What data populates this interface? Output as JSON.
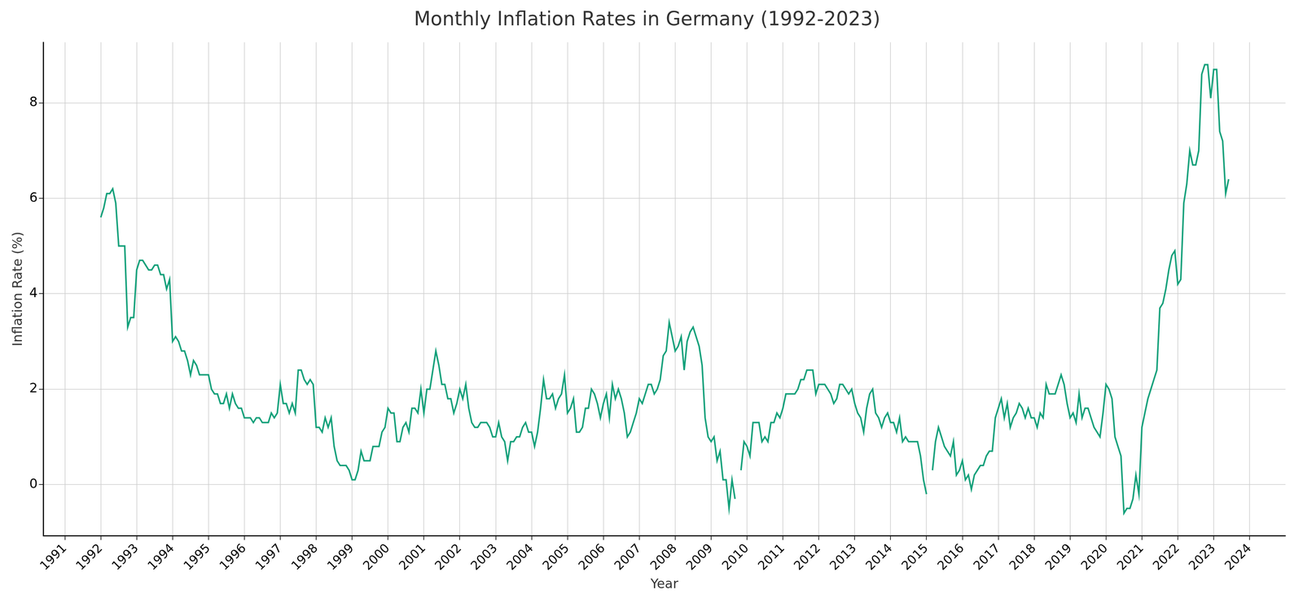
{
  "chart_data": {
    "type": "line",
    "title": "Monthly Inflation Rates in Germany (1992-2023)",
    "x_label": "Year",
    "y_label": "Inflation Rate (%)",
    "color": "#13a07a",
    "line_style": "solid",
    "marker": "none",
    "grid": true,
    "xlim": [
      1990.4,
      2025.0
    ],
    "xticks": [
      1991,
      1992,
      1993,
      1994,
      1995,
      1996,
      1997,
      1998,
      1999,
      2000,
      2001,
      2002,
      2003,
      2004,
      2005,
      2006,
      2007,
      2008,
      2009,
      2010,
      2011,
      2012,
      2013,
      2014,
      2015,
      2016,
      2017,
      2018,
      2019,
      2020,
      2021,
      2022,
      2023,
      2024
    ],
    "ylim": [
      -1.07,
      9.27
    ],
    "yticks": [
      0,
      2,
      4,
      6,
      8
    ],
    "x": [
      1992,
      1992.083,
      1992.167,
      1992.25,
      1992.333,
      1992.417,
      1992.5,
      1992.583,
      1992.667,
      1992.75,
      1992.833,
      1992.917,
      1993,
      1993.083,
      1993.167,
      1993.25,
      1993.333,
      1993.417,
      1993.5,
      1993.583,
      1993.667,
      1993.75,
      1993.833,
      1993.917,
      1994,
      1994.083,
      1994.167,
      1994.25,
      1994.333,
      1994.417,
      1994.5,
      1994.583,
      1994.667,
      1994.75,
      1994.833,
      1994.917,
      1995,
      1995.083,
      1995.167,
      1995.25,
      1995.333,
      1995.417,
      1995.5,
      1995.583,
      1995.667,
      1995.75,
      1995.833,
      1995.917,
      1996,
      1996.083,
      1996.167,
      1996.25,
      1996.333,
      1996.417,
      1996.5,
      1996.583,
      1996.667,
      1996.75,
      1996.833,
      1996.917,
      1997,
      1997.083,
      1997.167,
      1997.25,
      1997.333,
      1997.417,
      1997.5,
      1997.583,
      1997.667,
      1997.75,
      1997.833,
      1997.917,
      1998,
      1998.083,
      1998.167,
      1998.25,
      1998.333,
      1998.417,
      1998.5,
      1998.583,
      1998.667,
      1998.75,
      1998.833,
      1998.917,
      1999,
      1999.083,
      1999.167,
      1999.25,
      1999.333,
      1999.417,
      1999.5,
      1999.583,
      1999.667,
      1999.75,
      1999.833,
      1999.917,
      2000,
      2000.083,
      2000.167,
      2000.25,
      2000.333,
      2000.417,
      2000.5,
      2000.583,
      2000.667,
      2000.75,
      2000.833,
      2000.917,
      2001,
      2001.083,
      2001.167,
      2001.25,
      2001.333,
      2001.417,
      2001.5,
      2001.583,
      2001.667,
      2001.75,
      2001.833,
      2001.917,
      2002,
      2002.083,
      2002.167,
      2002.25,
      2002.333,
      2002.417,
      2002.5,
      2002.583,
      2002.667,
      2002.75,
      2002.833,
      2002.917,
      2003,
      2003.083,
      2003.167,
      2003.25,
      2003.333,
      2003.417,
      2003.5,
      2003.583,
      2003.667,
      2003.75,
      2003.833,
      2003.917,
      2004,
      2004.083,
      2004.167,
      2004.25,
      2004.333,
      2004.417,
      2004.5,
      2004.583,
      2004.667,
      2004.75,
      2004.833,
      2004.917,
      2005,
      2005.083,
      2005.167,
      2005.25,
      2005.333,
      2005.417,
      2005.5,
      2005.583,
      2005.667,
      2005.75,
      2005.833,
      2005.917,
      2006,
      2006.083,
      2006.167,
      2006.25,
      2006.333,
      2006.417,
      2006.5,
      2006.583,
      2006.667,
      2006.75,
      2006.833,
      2006.917,
      2007,
      2007.083,
      2007.167,
      2007.25,
      2007.333,
      2007.417,
      2007.5,
      2007.583,
      2007.667,
      2007.75,
      2007.833,
      2007.917,
      2008,
      2008.083,
      2008.167,
      2008.25,
      2008.333,
      2008.417,
      2008.5,
      2008.583,
      2008.667,
      2008.75,
      2008.833,
      2008.917,
      2009,
      2009.083,
      2009.167,
      2009.25,
      2009.333,
      2009.417,
      2009.5,
      2009.583,
      2009.667,
      2009.75,
      2009.833,
      2009.917,
      2010,
      2010.083,
      2010.167,
      2010.25,
      2010.333,
      2010.417,
      2010.5,
      2010.583,
      2010.667,
      2010.75,
      2010.833,
      2010.917,
      2011,
      2011.083,
      2011.167,
      2011.25,
      2011.333,
      2011.417,
      2011.5,
      2011.583,
      2011.667,
      2011.75,
      2011.833,
      2011.917,
      2012,
      2012.083,
      2012.167,
      2012.25,
      2012.333,
      2012.417,
      2012.5,
      2012.583,
      2012.667,
      2012.75,
      2012.833,
      2012.917,
      2013,
      2013.083,
      2013.167,
      2013.25,
      2013.333,
      2013.417,
      2013.5,
      2013.583,
      2013.667,
      2013.75,
      2013.833,
      2013.917,
      2014,
      2014.083,
      2014.167,
      2014.25,
      2014.333,
      2014.417,
      2014.5,
      2014.583,
      2014.667,
      2014.75,
      2014.833,
      2014.917,
      2015,
      2015.083,
      2015.167,
      2015.25,
      2015.333,
      2015.417,
      2015.5,
      2015.583,
      2015.667,
      2015.75,
      2015.833,
      2015.917,
      2016,
      2016.083,
      2016.167,
      2016.25,
      2016.333,
      2016.417,
      2016.5,
      2016.583,
      2016.667,
      2016.75,
      2016.833,
      2016.917,
      2017,
      2017.083,
      2017.167,
      2017.25,
      2017.333,
      2017.417,
      2017.5,
      2017.583,
      2017.667,
      2017.75,
      2017.833,
      2017.917,
      2018,
      2018.083,
      2018.167,
      2018.25,
      2018.333,
      2018.417,
      2018.5,
      2018.583,
      2018.667,
      2018.75,
      2018.833,
      2018.917,
      2019,
      2019.083,
      2019.167,
      2019.25,
      2019.333,
      2019.417,
      2019.5,
      2019.583,
      2019.667,
      2019.75,
      2019.833,
      2019.917,
      2020,
      2020.083,
      2020.167,
      2020.25,
      2020.333,
      2020.417,
      2020.5,
      2020.583,
      2020.667,
      2020.75,
      2020.833,
      2020.917,
      2021,
      2021.083,
      2021.167,
      2021.25,
      2021.333,
      2021.417,
      2021.5,
      2021.583,
      2021.667,
      2021.75,
      2021.833,
      2021.917,
      2022,
      2022.083,
      2022.167,
      2022.25,
      2022.333,
      2022.417,
      2022.5,
      2022.583,
      2022.667,
      2022.75,
      2022.833,
      2022.917,
      2023,
      2023.083,
      2023.167,
      2023.25,
      2023.333,
      2023.417
    ],
    "values": [
      5.6,
      5.8,
      6.1,
      6.1,
      6.2,
      5.9,
      5.0,
      5.0,
      5.0,
      3.3,
      3.5,
      3.5,
      4.5,
      4.7,
      4.7,
      4.6,
      4.5,
      4.5,
      4.6,
      4.6,
      4.4,
      4.4,
      4.1,
      4.3,
      3.0,
      3.1,
      3.0,
      2.8,
      2.8,
      2.6,
      2.3,
      2.6,
      2.5,
      2.3,
      2.3,
      2.3,
      2.3,
      2.0,
      1.9,
      1.9,
      1.7,
      1.7,
      1.9,
      1.6,
      1.9,
      1.7,
      1.6,
      1.6,
      1.4,
      1.4,
      1.4,
      1.3,
      1.4,
      1.4,
      1.3,
      1.3,
      1.3,
      1.5,
      1.4,
      1.5,
      2.1,
      1.7,
      1.7,
      1.5,
      1.7,
      1.5,
      2.4,
      2.4,
      2.2,
      2.1,
      2.2,
      2.1,
      1.2,
      1.2,
      1.1,
      1.4,
      1.2,
      1.4,
      0.8,
      0.5,
      0.4,
      0.4,
      0.4,
      0.3,
      0.1,
      0.1,
      0.3,
      0.7,
      0.5,
      0.5,
      0.5,
      0.8,
      0.8,
      0.8,
      1.1,
      1.2,
      1.6,
      1.5,
      1.5,
      0.9,
      0.9,
      1.2,
      1.3,
      1.1,
      1.6,
      1.6,
      1.5,
      2.0,
      1.5,
      2.0,
      2.0,
      2.4,
      2.8,
      2.5,
      2.1,
      2.1,
      1.8,
      1.8,
      1.5,
      1.7,
      2.0,
      1.8,
      2.1,
      1.6,
      1.3,
      1.2,
      1.2,
      1.3,
      1.3,
      1.3,
      1.2,
      1.0,
      1.0,
      1.3,
      1.0,
      0.9,
      0.5,
      0.9,
      0.9,
      1.0,
      1.0,
      1.2,
      1.3,
      1.1,
      1.1,
      0.8,
      1.1,
      1.6,
      2.2,
      1.8,
      1.8,
      1.9,
      1.6,
      1.8,
      1.9,
      2.3,
      1.5,
      1.6,
      1.8,
      1.1,
      1.1,
      1.2,
      1.6,
      1.6,
      2.0,
      1.9,
      1.7,
      1.4,
      1.7,
      1.9,
      1.4,
      2.1,
      1.8,
      2.0,
      1.8,
      1.5,
      1.0,
      1.1,
      1.3,
      1.5,
      1.8,
      1.7,
      1.9,
      2.1,
      2.1,
      1.9,
      2.0,
      2.2,
      2.7,
      2.8,
      3.4,
      3.1,
      2.8,
      2.9,
      3.1,
      2.4,
      3.0,
      3.2,
      3.3,
      3.1,
      2.9,
      2.5,
      1.4,
      1.0,
      0.9,
      1.0,
      0.5,
      0.7,
      0.1,
      0.1,
      -0.5,
      0.1,
      -0.3,
      null,
      0.3,
      0.9,
      0.8,
      0.6,
      1.3,
      1.3,
      1.3,
      0.9,
      1.0,
      0.9,
      1.3,
      1.3,
      1.5,
      1.4,
      1.6,
      1.9,
      1.9,
      1.9,
      1.9,
      2.0,
      2.2,
      2.2,
      2.4,
      2.4,
      2.4,
      1.9,
      2.1,
      2.1,
      2.1,
      2.0,
      1.9,
      1.7,
      1.8,
      2.1,
      2.1,
      2.0,
      1.9,
      2.0,
      1.7,
      1.5,
      1.4,
      1.1,
      1.6,
      1.9,
      2.0,
      1.5,
      1.4,
      1.2,
      1.4,
      1.5,
      1.3,
      1.3,
      1.1,
      1.4,
      0.9,
      1.0,
      0.9,
      0.9,
      0.9,
      0.9,
      0.6,
      0.1,
      -0.2,
      null,
      0.3,
      0.9,
      1.2,
      1.0,
      0.8,
      0.7,
      0.6,
      0.9,
      0.2,
      0.3,
      0.5,
      0.1,
      0.2,
      -0.1,
      0.2,
      0.3,
      0.4,
      0.4,
      0.6,
      0.7,
      0.7,
      1.4,
      1.6,
      1.8,
      1.4,
      1.7,
      1.2,
      1.4,
      1.5,
      1.7,
      1.6,
      1.4,
      1.6,
      1.4,
      1.4,
      1.2,
      1.5,
      1.4,
      2.1,
      1.9,
      1.9,
      1.9,
      2.1,
      2.3,
      2.1,
      1.7,
      1.4,
      1.5,
      1.3,
      1.9,
      1.4,
      1.6,
      1.6,
      1.4,
      1.2,
      1.1,
      1.0,
      1.5,
      2.1,
      2.0,
      1.8,
      1.0,
      0.8,
      0.6,
      -0.6,
      -0.5,
      -0.5,
      -0.3,
      0.2,
      -0.2,
      1.2,
      1.5,
      1.8,
      2.0,
      2.2,
      2.4,
      3.7,
      3.8,
      4.1,
      4.5,
      4.8,
      4.9,
      4.2,
      4.3,
      5.9,
      6.3,
      7.0,
      6.7,
      6.7,
      7.0,
      8.6,
      8.8,
      8.8,
      8.1,
      8.7,
      8.7,
      7.4,
      7.2,
      6.1,
      6.4
    ]
  }
}
